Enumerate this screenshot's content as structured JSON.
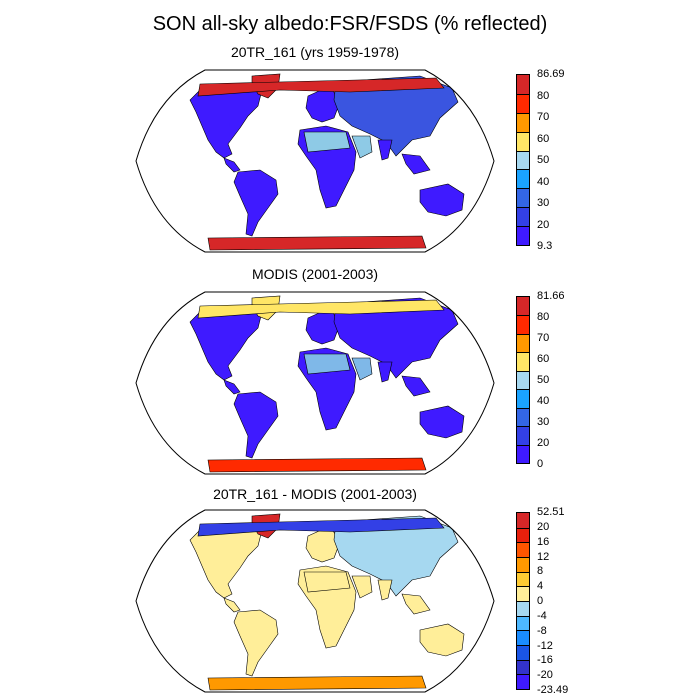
{
  "title": "SON all-sky albedo:FSR/FSDS (% reflected)",
  "panels": [
    {
      "title": "20TR_161 (yrs 1959-1978)",
      "colorbar": {
        "labels": [
          "86.69",
          "80",
          "70",
          "60",
          "50",
          "40",
          "30",
          "20",
          "9.3"
        ],
        "colors": [
          "#d62728",
          "#ff2a00",
          "#ff9900",
          "#ffe666",
          "#a6d8f0",
          "#1aa3ff",
          "#3366e6",
          "#3340e6",
          "#3f1aff"
        ]
      },
      "map_colors": {
        "land": "#3f1aff",
        "desert": "#8ecae6",
        "asia": "#3a55e0",
        "arctic": "#d62728",
        "antarctica": "#d62728",
        "greenland": "#d62728"
      }
    },
    {
      "title": "MODIS (2001-2003)",
      "colorbar": {
        "labels": [
          "81.66",
          "80",
          "70",
          "60",
          "50",
          "40",
          "30",
          "20",
          "0"
        ],
        "colors": [
          "#d62728",
          "#ff2a00",
          "#ff9900",
          "#ffe666",
          "#a6d8f0",
          "#1aa3ff",
          "#3366e6",
          "#3340e6",
          "#3f1aff"
        ]
      },
      "map_colors": {
        "land": "#3f1aff",
        "desert": "#7fb8e8",
        "asia": "#3f1aff",
        "arctic": "#ffe666",
        "antarctica": "#ff2a00",
        "greenland": "#ffe666"
      }
    },
    {
      "title": "20TR_161 - MODIS (2001-2003)",
      "colorbar": {
        "labels": [
          "52.51",
          "20",
          "16",
          "12",
          "8",
          "4",
          "0",
          "-4",
          "-8",
          "-12",
          "-16",
          "-20",
          "-23.49"
        ],
        "colors": [
          "#d62728",
          "#e8200c",
          "#ff5500",
          "#ff9900",
          "#ffcc33",
          "#ffee99",
          "#a6d8f0",
          "#4db8ff",
          "#1a8cff",
          "#1a55e6",
          "#3333cc",
          "#3f1aff"
        ]
      },
      "map_colors": {
        "land": "#ffee99",
        "desert": "#ffee99",
        "asia": "#a6d8f0",
        "arctic": "#3340e6",
        "antarctica": "#ff9900",
        "greenland": "#d62728"
      }
    }
  ]
}
